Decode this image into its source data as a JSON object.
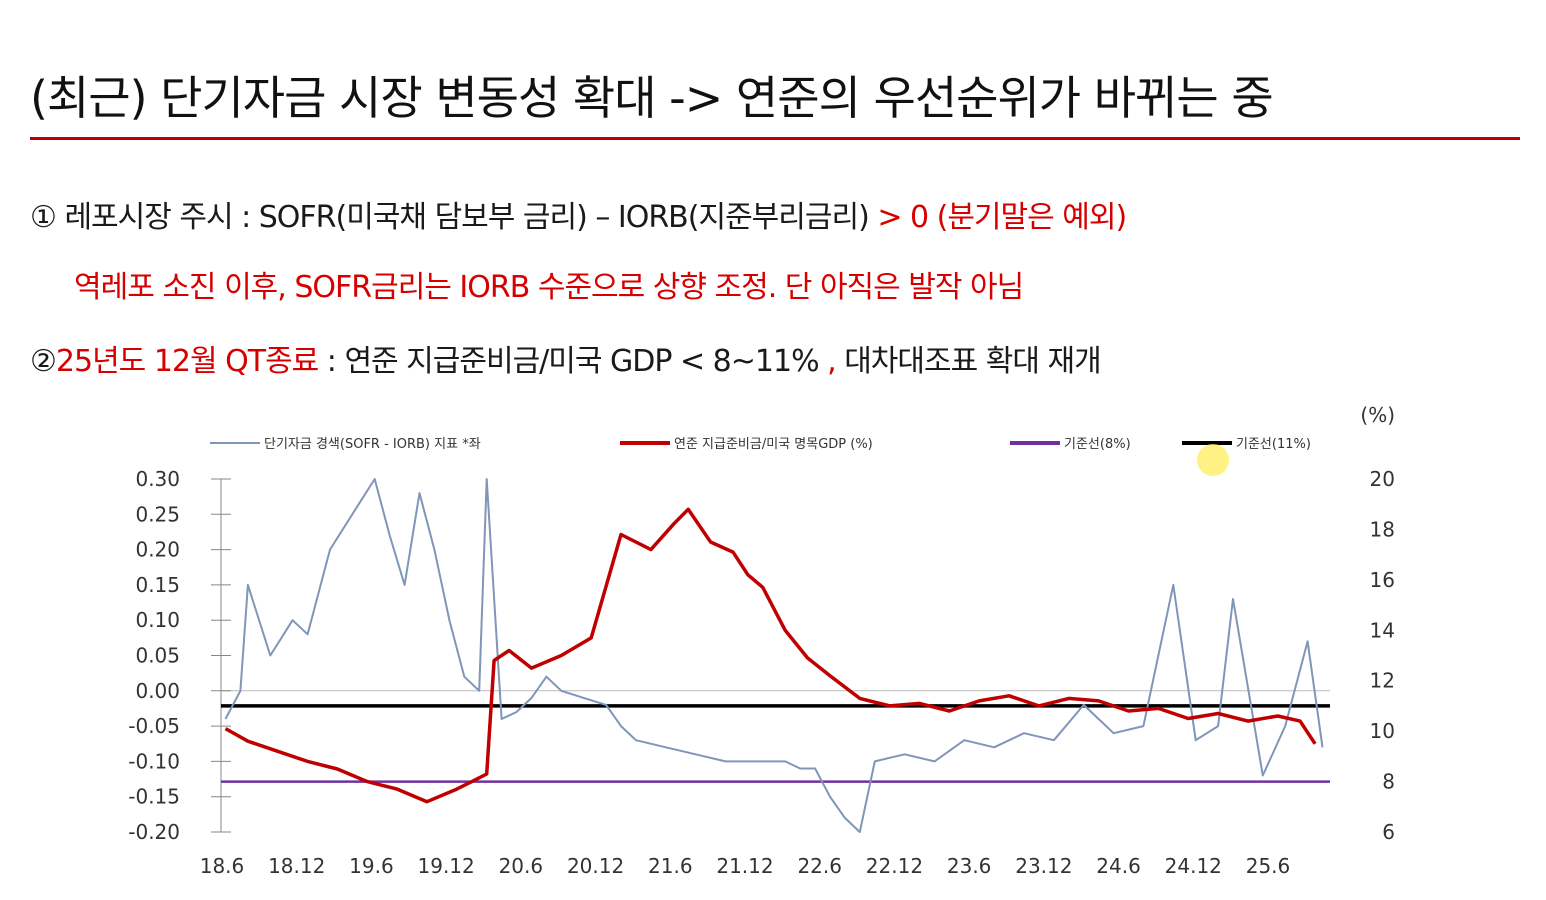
{
  "slide": {
    "title": "(최근) 단기자금 시장 변동성 확대 -> 연준의 우선순위가 바뀌는 중",
    "accent_color": "#c00000"
  },
  "bullets": {
    "item1": {
      "marker": "①",
      "text_prefix": "레포시장 주시 : SOFR(미국채 담보부 금리) – IORB(지준부리금리)",
      "text_red": "> 0  (분기말은 예외)"
    },
    "item1_note": "역레포 소진 이후, SOFR금리는 IORB 수준으로 상향 조정. 단 아직은 발작 아님",
    "item2": {
      "marker": "②",
      "text_red": "25년도 12월 QT종료",
      "text_middle": " : 연준 지급준비금/미국 GDP < 8~11%",
      "text_comma_red": " ,",
      "text_suffix": " 대차대조표 확대 재개"
    }
  },
  "chart_data": {
    "type": "line",
    "right_axis_unit": "(%)",
    "legend": [
      {
        "label": "단기자금 경색(SOFR - IORB) 지표 *좌",
        "color": "#7f96b8"
      },
      {
        "label": "연준 지급준비금/미국 명목GDP (%)",
        "color": "#c00000"
      },
      {
        "label": "기준선(8%)",
        "color": "#7030a0"
      },
      {
        "label": "기준선(11%)",
        "color": "#000000"
      }
    ],
    "x_ticks": [
      "18.6",
      "18.12",
      "19.6",
      "19.12",
      "20.6",
      "20.12",
      "21.6",
      "21.12",
      "22.6",
      "22.12",
      "23.6",
      "23.12",
      "24.6",
      "24.12",
      "25.6"
    ],
    "left_axis": {
      "ticks": [
        "0.30",
        "0.25",
        "0.20",
        "0.15",
        "0.10",
        "0.05",
        "0.00",
        "-0.05",
        "-0.10",
        "-0.15",
        "-0.20"
      ],
      "ylim": [
        -0.2,
        0.3
      ]
    },
    "right_axis": {
      "ticks": [
        "20",
        "18",
        "16",
        "14",
        "12",
        "10",
        "8",
        "6"
      ],
      "ylim": [
        6,
        20
      ]
    },
    "series": [
      {
        "name": "단기자금 경색(SOFR - IORB) 지표 *좌",
        "axis": "left",
        "color": "#7f96b8",
        "x": [
          2018.45,
          2018.55,
          2018.6,
          2018.75,
          2018.9,
          2019.0,
          2019.15,
          2019.3,
          2019.45,
          2019.55,
          2019.65,
          2019.75,
          2019.85,
          2019.95,
          2020.05,
          2020.15,
          2020.2,
          2020.3,
          2020.4,
          2020.5,
          2020.6,
          2020.7,
          2020.85,
          2021.0,
          2021.1,
          2021.2,
          2021.4,
          2021.6,
          2021.8,
          2022.0,
          2022.2,
          2022.3,
          2022.4,
          2022.5,
          2022.6,
          2022.7,
          2022.8,
          2023.0,
          2023.2,
          2023.4,
          2023.6,
          2023.8,
          2024.0,
          2024.2,
          2024.4,
          2024.6,
          2024.8,
          2024.95,
          2025.1,
          2025.2,
          2025.4,
          2025.55,
          2025.7,
          2025.8
        ],
        "y": [
          -0.04,
          0.0,
          0.15,
          0.05,
          0.1,
          0.08,
          0.2,
          0.25,
          0.3,
          0.22,
          0.15,
          0.28,
          0.2,
          0.1,
          0.02,
          0.0,
          0.3,
          -0.04,
          -0.03,
          -0.01,
          0.02,
          0.0,
          -0.01,
          -0.02,
          -0.05,
          -0.07,
          -0.08,
          -0.09,
          -0.1,
          -0.1,
          -0.1,
          -0.11,
          -0.11,
          -0.15,
          -0.18,
          -0.2,
          -0.1,
          -0.09,
          -0.1,
          -0.07,
          -0.08,
          -0.06,
          -0.07,
          -0.02,
          -0.06,
          -0.05,
          0.15,
          -0.07,
          -0.05,
          0.13,
          -0.12,
          -0.05,
          0.07,
          -0.08
        ]
      },
      {
        "name": "연준 지급준비금/미국 명목GDP (%)",
        "axis": "right",
        "color": "#c00000",
        "x": [
          2018.45,
          2018.6,
          2018.8,
          2019.0,
          2019.2,
          2019.4,
          2019.6,
          2019.8,
          2020.0,
          2020.1,
          2020.2,
          2020.25,
          2020.35,
          2020.5,
          2020.7,
          2020.9,
          2021.1,
          2021.3,
          2021.45,
          2021.55,
          2021.7,
          2021.85,
          2021.95,
          2022.05,
          2022.2,
          2022.35,
          2022.5,
          2022.7,
          2022.9,
          2023.1,
          2023.3,
          2023.5,
          2023.7,
          2023.9,
          2024.1,
          2024.3,
          2024.5,
          2024.7,
          2024.9,
          2025.1,
          2025.3,
          2025.5,
          2025.65,
          2025.75
        ],
        "y": [
          10.1,
          9.6,
          9.2,
          8.8,
          8.5,
          8.0,
          7.7,
          7.2,
          7.7,
          8.0,
          8.3,
          12.8,
          13.2,
          12.5,
          13.0,
          13.7,
          17.8,
          17.2,
          18.2,
          18.8,
          17.5,
          17.1,
          16.2,
          15.7,
          14.0,
          12.9,
          12.2,
          11.3,
          11.0,
          11.1,
          10.8,
          11.2,
          11.4,
          11.0,
          11.3,
          11.2,
          10.8,
          10.9,
          10.5,
          10.7,
          10.4,
          10.6,
          10.4,
          9.5
        ]
      },
      {
        "name": "기준선(8%)",
        "axis": "right",
        "color": "#7030a0",
        "value": 8
      },
      {
        "name": "기준선(11%)",
        "axis": "right",
        "color": "#000000",
        "value": 11
      }
    ],
    "xlim": [
      2018.42,
      2025.85
    ]
  }
}
